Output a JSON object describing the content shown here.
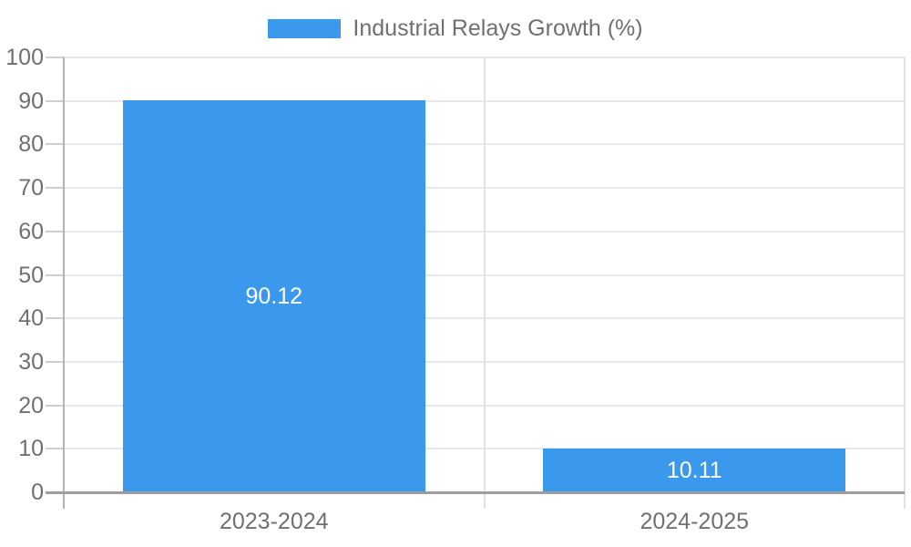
{
  "legend": {
    "label": "Industrial Relays Growth (%)"
  },
  "colors": {
    "bar-color": "#3A99ED",
    "text-color": "#707070",
    "grid-color": "#E8E8E8",
    "tick-color": "#CFCFCF",
    "boundary-color": "#E2E2E2",
    "axis-y-color": "#B3B3B3",
    "axis-x-color": "#9E9E9E",
    "bar-label-color": "#FFFFFF"
  },
  "chart_data": {
    "type": "bar",
    "title": "",
    "series_name": "Industrial Relays Growth (%)",
    "categories": [
      "2023-2024",
      "2024-2025"
    ],
    "values": [
      90.12,
      10.11
    ],
    "value_labels": [
      "90.12",
      "10.11"
    ],
    "xlabel": "",
    "ylabel": "",
    "ylim": [
      0,
      100
    ],
    "yticks": [
      0,
      10,
      20,
      30,
      40,
      50,
      60,
      70,
      80,
      90,
      100
    ],
    "grid": "on",
    "legend_position": "top-center",
    "bar_label_position": "inside-center"
  }
}
